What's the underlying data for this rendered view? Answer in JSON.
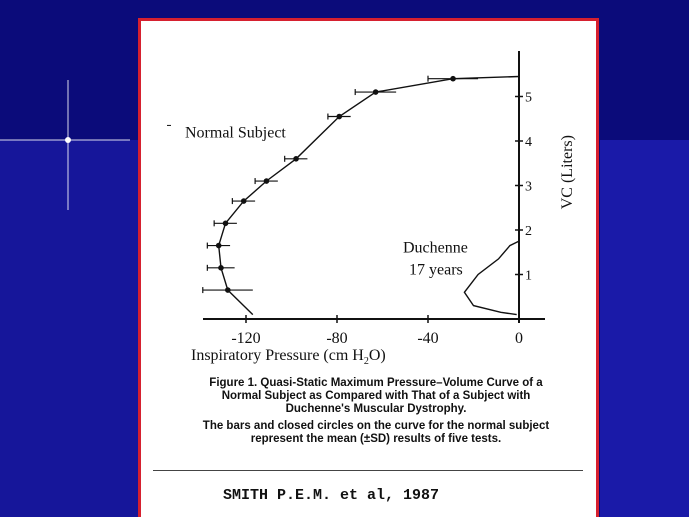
{
  "chart_data": {
    "type": "line",
    "xlabel_main": "Inspiratory Pressure",
    "xlabel_units": "(cm H",
    "xlabel_sub": "2",
    "xlabel_close": "O)",
    "ylabel": "VC (Liters)",
    "x_ticks": [
      "-120",
      "-80",
      "-40",
      "0"
    ],
    "x_tick_values": [
      -120,
      -80,
      -40,
      0
    ],
    "y_ticks": [
      "1",
      "2",
      "3",
      "4",
      "5"
    ],
    "y_tick_values": [
      1,
      2,
      3,
      4,
      5
    ],
    "xlim": [
      -140,
      10
    ],
    "ylim": [
      0,
      5.9
    ],
    "series": [
      {
        "name": "Normal Subject",
        "points": [
          {
            "x": -117,
            "y": 0.1
          },
          {
            "x": -128,
            "y": 0.65
          },
          {
            "x": -131,
            "y": 1.15
          },
          {
            "x": -132,
            "y": 1.65
          },
          {
            "x": -129,
            "y": 2.15
          },
          {
            "x": -121,
            "y": 2.65
          },
          {
            "x": -111,
            "y": 3.1
          },
          {
            "x": -98,
            "y": 3.6
          },
          {
            "x": -79,
            "y": 4.55
          },
          {
            "x": -63,
            "y": 5.1
          },
          {
            "x": -29,
            "y": 5.4
          },
          {
            "x": 0,
            "y": 5.45
          }
        ],
        "markers": [
          {
            "x": -128,
            "y": 0.65,
            "sd": 11
          },
          {
            "x": -131,
            "y": 1.15,
            "sd": 6
          },
          {
            "x": -132,
            "y": 1.65,
            "sd": 5
          },
          {
            "x": -129,
            "y": 2.15,
            "sd": 5
          },
          {
            "x": -121,
            "y": 2.65,
            "sd": 5
          },
          {
            "x": -111,
            "y": 3.1,
            "sd": 5
          },
          {
            "x": -98,
            "y": 3.6,
            "sd": 5
          },
          {
            "x": -79,
            "y": 4.55,
            "sd": 5
          },
          {
            "x": -63,
            "y": 5.1,
            "sd": 9
          },
          {
            "x": -29,
            "y": 5.4,
            "sd": 11
          }
        ]
      },
      {
        "name": "Duchenne 17 years",
        "points": [
          {
            "x": -1,
            "y": 0.1
          },
          {
            "x": -8,
            "y": 0.15
          },
          {
            "x": -20,
            "y": 0.3
          },
          {
            "x": -24,
            "y": 0.6
          },
          {
            "x": -18,
            "y": 1.0
          },
          {
            "x": -9,
            "y": 1.35
          },
          {
            "x": -4,
            "y": 1.65
          },
          {
            "x": 0,
            "y": 1.75
          }
        ]
      }
    ],
    "annotations": [
      {
        "text": "Normal Subject"
      },
      {
        "text": "Duchenne"
      },
      {
        "text": "17 years"
      }
    ]
  },
  "caption": {
    "line1": "Figure 1. Quasi-Static Maximum Pressure–Volume Curve of a",
    "line2": "Normal Subject as Compared with That of a Subject with",
    "line3": "Duchenne's Muscular Dystrophy.",
    "line4": "The bars and closed circles on the curve for the normal subject",
    "line5": "represent the mean (±SD) results of five tests."
  },
  "citation": "SMITH P.E.M. et al, 1987",
  "colors": {
    "background": "#0b0b7a",
    "frame_border": "#d6202f",
    "ink": "#111111"
  }
}
